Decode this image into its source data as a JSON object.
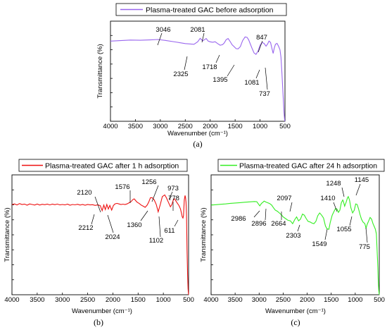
{
  "chart_data": [
    {
      "type": "line",
      "panel_label": "(a)",
      "xlabel": "Wavenumber (cm⁻¹)",
      "ylabel": "Transmittance (%)",
      "xlim": [
        4000,
        500
      ],
      "x_reversed": true,
      "xticks": [
        4000,
        3500,
        3000,
        2500,
        2000,
        1500,
        1000,
        500
      ],
      "y_tick_labels_shown": false,
      "grid": false,
      "legend_position": "top",
      "series": [
        {
          "name": "Plasma-treated GAC before adsorption",
          "color": "#9966ee",
          "x": [
            4000,
            3800,
            3600,
            3400,
            3200,
            3046,
            2900,
            2700,
            2500,
            2325,
            2250,
            2200,
            2150,
            2081,
            2040,
            2000,
            1950,
            1900,
            1850,
            1800,
            1750,
            1718,
            1680,
            1640,
            1600,
            1560,
            1520,
            1480,
            1440,
            1395,
            1350,
            1300,
            1260,
            1230,
            1200,
            1160,
            1120,
            1081,
            1040,
            1000,
            960,
            920,
            880,
            847,
            820,
            790,
            760,
            737,
            715,
            690,
            660,
            630,
            600,
            580,
            560,
            540,
            520,
            505,
            500
          ],
          "y": [
            87.5,
            88.0,
            88.6,
            88.4,
            88.8,
            89.2,
            88.2,
            86.5,
            84.8,
            84.0,
            86.8,
            90.5,
            87.8,
            90.3,
            87.5,
            86.7,
            86.2,
            86.8,
            84.8,
            83.0,
            83.6,
            85.5,
            89.0,
            90.3,
            87.0,
            83.5,
            81.5,
            79.2,
            79.0,
            81.5,
            88.0,
            92.0,
            91.5,
            89.0,
            85.0,
            79.5,
            74.5,
            73.0,
            76.5,
            83.0,
            86.0,
            85.0,
            82.0,
            84.5,
            87.5,
            86.0,
            79.0,
            74.0,
            80.0,
            84.0,
            85.0,
            82.0,
            78.0,
            70.0,
            52.0,
            30.0,
            10.0,
            0.5,
            0.0
          ]
        }
      ],
      "annotations": [
        "3046",
        "2081",
        "847",
        "2325",
        "1718",
        "1395",
        "1081",
        "737"
      ]
    },
    {
      "type": "line",
      "panel_label": "(b)",
      "xlabel": "Wavenumber (cm⁻¹)",
      "ylabel": "Transmittance (%)",
      "xlim": [
        4000,
        500
      ],
      "x_reversed": true,
      "xticks": [
        4000,
        3500,
        3000,
        2500,
        2000,
        1500,
        1000,
        500
      ],
      "y_tick_labels_shown": false,
      "grid": false,
      "legend_position": "top",
      "series": [
        {
          "name": "Plasma-treated GAC after 1 h adsorption",
          "color": "#ee1111",
          "x": [
            4000,
            3950,
            3900,
            3850,
            3800,
            3750,
            3700,
            3650,
            3600,
            3550,
            3500,
            3450,
            3400,
            3350,
            3300,
            3250,
            3200,
            3150,
            3100,
            3050,
            3000,
            2950,
            2900,
            2850,
            2800,
            2750,
            2700,
            2650,
            2600,
            2550,
            2500,
            2450,
            2400,
            2350,
            2300,
            2250,
            2212,
            2180,
            2150,
            2120,
            2090,
            2060,
            2024,
            1990,
            1960,
            1920,
            1880,
            1840,
            1800,
            1760,
            1720,
            1680,
            1640,
            1600,
            1576,
            1550,
            1520,
            1480,
            1440,
            1400,
            1360,
            1320,
            1290,
            1256,
            1220,
            1180,
            1140,
            1102,
            1060,
            1020,
            973,
            940,
            900,
            860,
            830,
            800,
            778,
            750,
            720,
            690,
            660,
            640,
            625,
            611,
            600,
            585,
            570,
            560,
            550,
            540,
            530,
            520,
            510,
            500
          ],
          "y": [
            80.0,
            80.5,
            79.6,
            80.8,
            80.0,
            80.4,
            79.4,
            80.5,
            80.0,
            79.5,
            80.4,
            79.5,
            80.2,
            79.8,
            80.3,
            79.6,
            80.3,
            79.8,
            80.4,
            79.6,
            80.0,
            79.6,
            80.3,
            79.4,
            80.0,
            79.7,
            80.2,
            79.5,
            80.0,
            79.4,
            80.0,
            79.6,
            79.8,
            79.2,
            79.6,
            79.0,
            74.5,
            79.5,
            75.5,
            80.0,
            76.0,
            79.2,
            75.0,
            79.0,
            80.5,
            81.0,
            80.5,
            80.0,
            80.3,
            80.0,
            80.5,
            81.5,
            82.5,
            84.5,
            85.0,
            83.5,
            82.0,
            81.0,
            79.5,
            78.5,
            77.5,
            79.5,
            82.0,
            86.0,
            86.0,
            84.0,
            80.0,
            73.5,
            80.0,
            87.0,
            88.5,
            86.0,
            82.0,
            78.0,
            80.0,
            84.5,
            85.0,
            83.0,
            81.0,
            79.0,
            76.0,
            72.0,
            69.0,
            68.0,
            70.0,
            84.0,
            88.0,
            86.0,
            82.0,
            70.0,
            40.0,
            18.0,
            5.0,
            0.0
          ]
        }
      ],
      "annotations": [
        "2120",
        "1576",
        "1256",
        "973",
        "778",
        "2212",
        "2024",
        "1360",
        "1102",
        "611"
      ]
    },
    {
      "type": "line",
      "panel_label": "(c)",
      "xlabel": "Wavenumber (cm⁻¹)",
      "ylabel": "Transmittance (%)",
      "xlim": [
        4000,
        500
      ],
      "x_reversed": true,
      "xticks": [
        4000,
        3500,
        3000,
        2500,
        2000,
        1500,
        1000,
        500
      ],
      "y_tick_labels_shown": false,
      "grid": false,
      "legend_position": "top",
      "series": [
        {
          "name": "Plasma-treated GAC after 24 h adsorption",
          "color": "#33ee22",
          "x": [
            4000,
            3900,
            3800,
            3700,
            3600,
            3500,
            3400,
            3300,
            3200,
            3100,
            3050,
            2986,
            2950,
            2920,
            2896,
            2860,
            2820,
            2780,
            2740,
            2700,
            2664,
            2620,
            2580,
            2540,
            2500,
            2450,
            2400,
            2350,
            2303,
            2260,
            2220,
            2180,
            2140,
            2097,
            2060,
            2020,
            1980,
            1940,
            1900,
            1860,
            1820,
            1780,
            1740,
            1700,
            1660,
            1620,
            1590,
            1549,
            1520,
            1480,
            1440,
            1410,
            1380,
            1350,
            1320,
            1290,
            1260,
            1248,
            1220,
            1190,
            1160,
            1145,
            1120,
            1090,
            1055,
            1020,
            990,
            960,
            930,
            900,
            870,
            840,
            800,
            775,
            750,
            720,
            690,
            660,
            630,
            600,
            580,
            560,
            545,
            530,
            520,
            510,
            500
          ],
          "y": [
            79.5,
            79.8,
            80.2,
            80.5,
            81.0,
            81.3,
            81.6,
            82.0,
            82.3,
            82.6,
            82.5,
            78.8,
            81.0,
            82.0,
            83.0,
            82.2,
            81.5,
            80.8,
            79.5,
            77.0,
            75.0,
            74.0,
            72.5,
            71.0,
            69.0,
            67.5,
            66.0,
            65.5,
            63.0,
            66.5,
            69.0,
            65.5,
            67.0,
            71.5,
            70.5,
            67.5,
            65.0,
            64.5,
            63.5,
            63.0,
            65.0,
            70.0,
            72.5,
            70.5,
            68.0,
            61.0,
            58.5,
            58.0,
            64.0,
            70.5,
            74.0,
            76.5,
            76.0,
            73.0,
            75.0,
            81.5,
            84.0,
            83.0,
            78.5,
            82.0,
            86.0,
            87.0,
            84.0,
            77.0,
            72.5,
            75.0,
            80.5,
            80.0,
            76.0,
            71.0,
            67.0,
            64.5,
            63.0,
            59.0,
            62.5,
            65.5,
            68.5,
            67.0,
            63.0,
            60.0,
            58.0,
            54.0,
            40.0,
            24.0,
            12.0,
            4.0,
            0.0
          ]
        }
      ],
      "annotations": [
        "1248",
        "1145",
        "2097",
        "1410",
        "2986",
        "2896",
        "2664",
        "2303",
        "1549",
        "1055",
        "775"
      ]
    }
  ]
}
